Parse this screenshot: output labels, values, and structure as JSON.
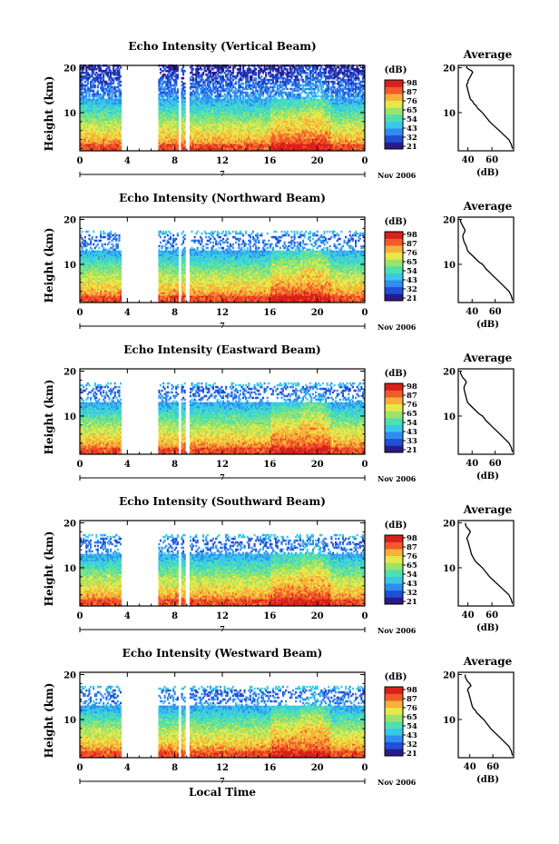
{
  "colors": {
    "scale": [
      "#2a1a8c",
      "#1f4fd6",
      "#2f8df0",
      "#39c8e8",
      "#4fe0b0",
      "#9be36a",
      "#e8e84a",
      "#f7b13a",
      "#f25a2a",
      "#d8201c"
    ],
    "axis": "#000000",
    "background": "#ffffff"
  },
  "chart_data": [
    {
      "type": "heatmap",
      "title": "Echo Intensity (Vertical Beam)",
      "ylabel": "Height (km)",
      "x_ticks": [
        "0",
        "4",
        "8",
        "12",
        "16",
        "20",
        "0"
      ],
      "xlim": [
        0,
        24
      ],
      "y_ticks": [
        "20",
        "10"
      ],
      "ylim": [
        1.5,
        20.5
      ],
      "date_marker": "7",
      "date_label": "Nov 2006",
      "colorbar": {
        "unit": "(dB)",
        "ticks": [
          "98",
          "87",
          "76",
          "65",
          "54",
          "43",
          "32",
          "21"
        ]
      },
      "data_gaps_hours": [
        [
          3.4,
          6.6
        ],
        [
          8.2,
          8.5
        ],
        [
          8.8,
          9.2
        ]
      ],
      "profile": {
        "title": "Average",
        "xlabel": "(dB)",
        "x_ticks": [
          "40",
          "60"
        ],
        "xlim": [
          32,
          78
        ],
        "y_ticks": [
          "20",
          "10"
        ],
        "ylim": [
          1.5,
          20.5
        ],
        "x": [
          77,
          76,
          74,
          70,
          66,
          62,
          58,
          55,
          52,
          50,
          48,
          47,
          45,
          44,
          42,
          41,
          40,
          39,
          39,
          40,
          40,
          41,
          42,
          43,
          44,
          43,
          41,
          40,
          39,
          39
        ],
        "y": [
          2,
          3,
          4,
          5,
          6,
          7,
          8,
          9,
          10,
          10.5,
          11,
          11.5,
          12,
          12.5,
          13,
          14,
          15,
          16,
          16.3,
          16.6,
          17,
          17.5,
          18,
          18.5,
          19,
          19.3,
          19.6,
          19.8,
          20,
          20.3
        ]
      }
    },
    {
      "type": "heatmap",
      "title": "Echo Intensity (Northward Beam)",
      "ylabel": "Height (km)",
      "x_ticks": [
        "0",
        "4",
        "8",
        "12",
        "16",
        "20",
        "0"
      ],
      "xlim": [
        0,
        24
      ],
      "y_ticks": [
        "20",
        "10"
      ],
      "ylim": [
        1.5,
        20.5
      ],
      "date_marker": "7",
      "date_label": "Nov 2006",
      "colorbar": {
        "unit": "(dB)",
        "ticks": [
          "98",
          "87",
          "76",
          "65",
          "54",
          "43",
          "32",
          "21"
        ]
      },
      "data_gaps_hours": [
        [
          3.4,
          6.6
        ],
        [
          8.2,
          8.5
        ],
        [
          8.8,
          9.2
        ]
      ],
      "profile": {
        "title": "Average",
        "xlabel": "(dB)",
        "x_ticks": [
          "40",
          "60"
        ],
        "xlim": [
          28,
          76
        ],
        "y_ticks": [
          "20",
          "10"
        ],
        "ylim": [
          1.5,
          20.5
        ],
        "x": [
          75,
          74,
          72,
          68,
          64,
          60,
          56,
          52,
          49,
          46,
          44,
          42,
          40,
          38,
          36,
          35,
          33,
          32,
          32,
          33,
          34,
          33,
          32,
          31,
          30,
          30
        ],
        "y": [
          2,
          3,
          4,
          5,
          6,
          7,
          8,
          9,
          10,
          10.5,
          11,
          11.5,
          12,
          12.5,
          13,
          14,
          15,
          16,
          16.5,
          17,
          17.5,
          18,
          18.5,
          19,
          19.5,
          20
        ]
      }
    },
    {
      "type": "heatmap",
      "title": "Echo Intensity (Eastward Beam)",
      "ylabel": "Height (km)",
      "x_ticks": [
        "0",
        "4",
        "8",
        "12",
        "16",
        "20",
        "0"
      ],
      "xlim": [
        0,
        24
      ],
      "y_ticks": [
        "20",
        "10"
      ],
      "ylim": [
        1.5,
        20.5
      ],
      "date_marker": "7",
      "date_label": "Nov 2006",
      "colorbar": {
        "unit": "(dB)",
        "ticks": [
          "98",
          "87",
          "76",
          "65",
          "54",
          "43",
          "33",
          "21"
        ]
      },
      "data_gaps_hours": [
        [
          3.4,
          6.6
        ],
        [
          8.2,
          8.5
        ],
        [
          8.8,
          9.2
        ]
      ],
      "profile": {
        "title": "Average",
        "xlabel": "(dB)",
        "x_ticks": [
          "40",
          "60"
        ],
        "xlim": [
          28,
          76
        ],
        "y_ticks": [
          "20",
          "10"
        ],
        "ylim": [
          1.5,
          20.5
        ],
        "x": [
          75,
          74,
          72,
          68,
          64,
          60,
          56,
          52,
          49,
          46,
          44,
          42,
          40,
          38,
          36,
          35,
          34,
          33,
          33,
          34,
          35,
          34,
          32,
          31,
          30,
          30
        ],
        "y": [
          2,
          3,
          4,
          5,
          6,
          7,
          8,
          9,
          10,
          10.5,
          11,
          11.5,
          12,
          12.5,
          13,
          14,
          15,
          16,
          16.5,
          17,
          17.5,
          18,
          18.5,
          19,
          19.5,
          20
        ]
      }
    },
    {
      "type": "heatmap",
      "title": "Echo Intensity (Southward Beam)",
      "ylabel": "Height (km)",
      "x_ticks": [
        "0",
        "4",
        "8",
        "12",
        "16",
        "20",
        "0"
      ],
      "xlim": [
        0,
        24
      ],
      "y_ticks": [
        "20",
        "10"
      ],
      "ylim": [
        1.5,
        20.5
      ],
      "date_marker": "7",
      "date_label": "Nov 2006",
      "colorbar": {
        "unit": "(dB)",
        "ticks": [
          "98",
          "87",
          "76",
          "65",
          "54",
          "43",
          "32",
          "21"
        ]
      },
      "data_gaps_hours": [
        [
          3.4,
          6.6
        ],
        [
          8.2,
          8.5
        ],
        [
          8.8,
          9.2
        ]
      ],
      "profile": {
        "title": "Average",
        "xlabel": "(dB)",
        "x_ticks": [
          "40",
          "60"
        ],
        "xlim": [
          32,
          78
        ],
        "y_ticks": [
          "20",
          "10"
        ],
        "ylim": [
          1.5,
          20.5
        ],
        "x": [
          77,
          76,
          74,
          70,
          66,
          62,
          58,
          55,
          52,
          50,
          48,
          46,
          45,
          44,
          43,
          42,
          41,
          40,
          39,
          40,
          41,
          42,
          41,
          39,
          38,
          38
        ],
        "y": [
          2,
          3,
          4,
          5,
          6,
          7,
          8,
          9,
          10,
          10.5,
          11,
          11.5,
          12,
          12.5,
          13,
          14,
          15,
          16,
          16.5,
          17,
          17.5,
          18,
          18.5,
          19,
          19.5,
          20
        ]
      }
    },
    {
      "type": "heatmap",
      "title": "Echo Intensity (Westward Beam)",
      "ylabel": "Height (km)",
      "x_ticks": [
        "0",
        "4",
        "8",
        "12",
        "16",
        "20",
        "0"
      ],
      "xlim": [
        0,
        24
      ],
      "y_ticks": [
        "20",
        "10"
      ],
      "ylim": [
        1.5,
        20.5
      ],
      "date_marker": "7",
      "date_label": "Nov 2006",
      "xlabel": "Local Time",
      "colorbar": {
        "unit": "(dB)",
        "ticks": [
          "98",
          "87",
          "76",
          "65",
          "54",
          "43",
          "32",
          "21"
        ]
      },
      "data_gaps_hours": [
        [
          3.4,
          6.6
        ],
        [
          8.2,
          8.5
        ],
        [
          8.8,
          9.2
        ]
      ],
      "profile": {
        "title": "Average",
        "xlabel": "(dB)",
        "x_ticks": [
          "40",
          "60"
        ],
        "xlim": [
          30,
          78
        ],
        "y_ticks": [
          "20",
          "10"
        ],
        "ylim": [
          1.5,
          20.5
        ],
        "x": [
          77,
          76,
          74,
          70,
          66,
          62,
          58,
          55,
          52,
          50,
          48,
          46,
          45,
          43,
          42,
          41,
          40,
          39,
          38,
          39,
          41,
          40,
          38,
          37,
          36,
          36
        ],
        "y": [
          2,
          3,
          4,
          5,
          6,
          7,
          8,
          9,
          10,
          10.5,
          11,
          11.5,
          12,
          12.5,
          13,
          14,
          15,
          16,
          16.5,
          17,
          17.5,
          18,
          18.5,
          19,
          19.5,
          20
        ]
      }
    }
  ]
}
